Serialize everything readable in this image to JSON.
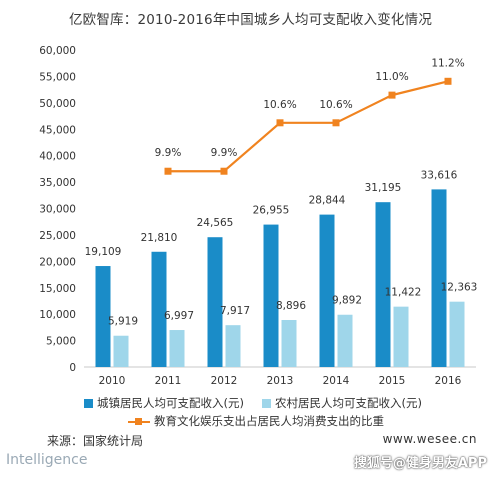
{
  "title": "亿欧智库：2010-2016年中国城乡人均可支配收入变化情况",
  "chart_data": {
    "type": "bar",
    "categories": [
      "2010",
      "2011",
      "2012",
      "2013",
      "2014",
      "2015",
      "2016"
    ],
    "ylim": [
      0,
      60000
    ],
    "yticks": [
      "0",
      "5,000",
      "10,000",
      "15,000",
      "20,000",
      "25,000",
      "30,000",
      "35,000",
      "40,000",
      "45,000",
      "50,000",
      "55,000",
      "60,000"
    ],
    "series": [
      {
        "name": "城镇居民人均可支配收入(元)",
        "color": "#1a8cc8",
        "values": [
          19109,
          21810,
          24565,
          26955,
          28844,
          31195,
          33616
        ],
        "labels": [
          "19,109",
          "21,810",
          "24,565",
          "26,955",
          "28,844",
          "31,195",
          "33,616"
        ]
      },
      {
        "name": "农村居民人均可支配收入(元)",
        "color": "#9fd6ea",
        "values": [
          5919,
          6997,
          7917,
          8896,
          9892,
          11422,
          12363
        ],
        "labels": [
          "5,919",
          "6,997",
          "7,917",
          "8,896",
          "9,892",
          "11,422",
          "12,363"
        ]
      }
    ],
    "line_series": {
      "name": "教育文化娱乐支出占居民人均消费支出的比重",
      "color": "#f0831f",
      "categories": [
        "2011",
        "2012",
        "2013",
        "2014",
        "2015",
        "2016"
      ],
      "values": [
        9.9,
        9.9,
        10.6,
        10.6,
        11.0,
        11.2
      ],
      "labels": [
        "9.9%",
        "9.9%",
        "10.6%",
        "10.6%",
        "11.0%",
        "11.2%"
      ]
    }
  },
  "source": "来源：国家统计局",
  "site": "www.wesee.cn",
  "brand": "Intelligence",
  "watermark": "搜狐号@健身男友APP"
}
